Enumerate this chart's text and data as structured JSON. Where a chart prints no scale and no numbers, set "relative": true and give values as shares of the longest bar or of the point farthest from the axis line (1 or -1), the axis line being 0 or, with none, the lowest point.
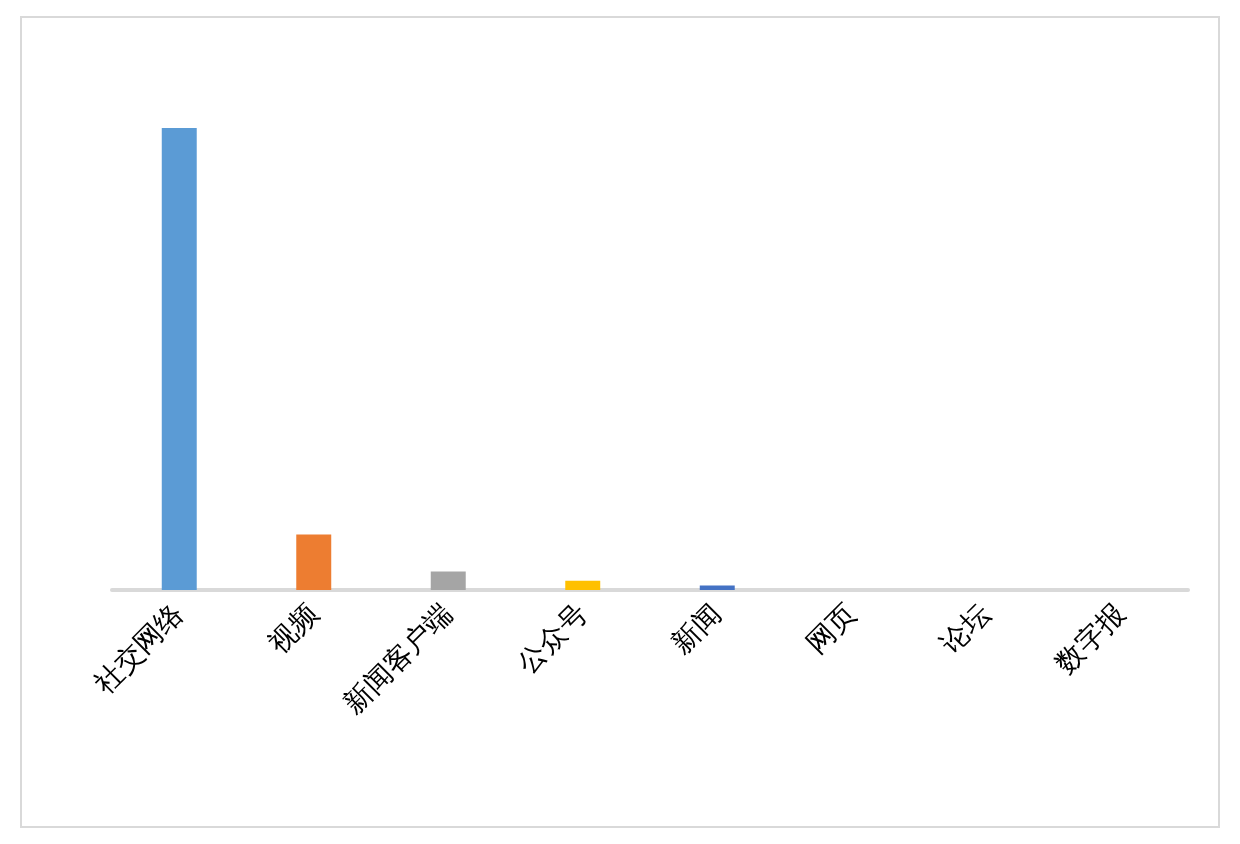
{
  "chart_data": {
    "type": "bar",
    "relative": true,
    "categories": [
      "社交网络",
      "视频",
      "新闻客户端",
      "公众号",
      "新闻",
      "网页",
      "论坛",
      "数字报"
    ],
    "values": [
      1,
      0.12,
      0.04,
      0.02,
      0.01,
      0,
      0,
      0
    ],
    "colors": [
      "#5b9bd5",
      "#ed7d31",
      "#a5a5a5",
      "#ffc000",
      "#4472c4",
      "#70ad47",
      "#264478",
      "#9e480e"
    ]
  }
}
